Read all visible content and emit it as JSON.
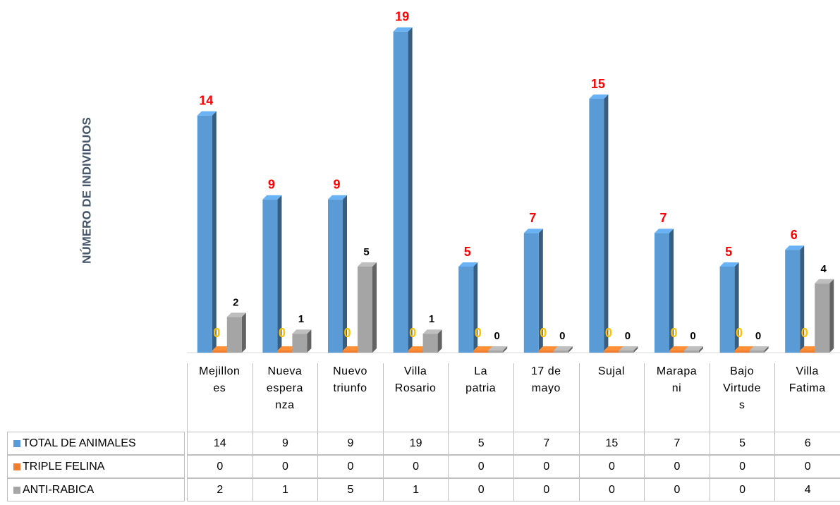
{
  "chart_data": {
    "type": "bar",
    "ylabel": "NÚMERO DE INDIVIDUOS",
    "categories": [
      "Mejillones",
      "Nueva esperanza",
      "Nuevo triunfo",
      "Villa Rosario",
      "La patria",
      "17 de mayo",
      "Sujal",
      "Marapani",
      "Bajo Virtudes",
      "Villa Fatima"
    ],
    "series": [
      {
        "name": "TOTAL DE ANIMALES",
        "color": "#5b9bd5",
        "label_color": "#ff0000",
        "values": [
          14,
          9,
          9,
          19,
          5,
          7,
          15,
          7,
          5,
          6
        ]
      },
      {
        "name": "TRIPLE FELINA",
        "color": "#ed7d31",
        "label_color": "#ffc000",
        "values": [
          0,
          0,
          0,
          0,
          0,
          0,
          0,
          0,
          0,
          0
        ]
      },
      {
        "name": "ANTI-RABICA",
        "color": "#a5a5a5",
        "label_color": "#000000",
        "values": [
          2,
          1,
          5,
          1,
          0,
          0,
          0,
          0,
          0,
          4
        ]
      }
    ],
    "ylim": [
      0,
      20
    ]
  }
}
